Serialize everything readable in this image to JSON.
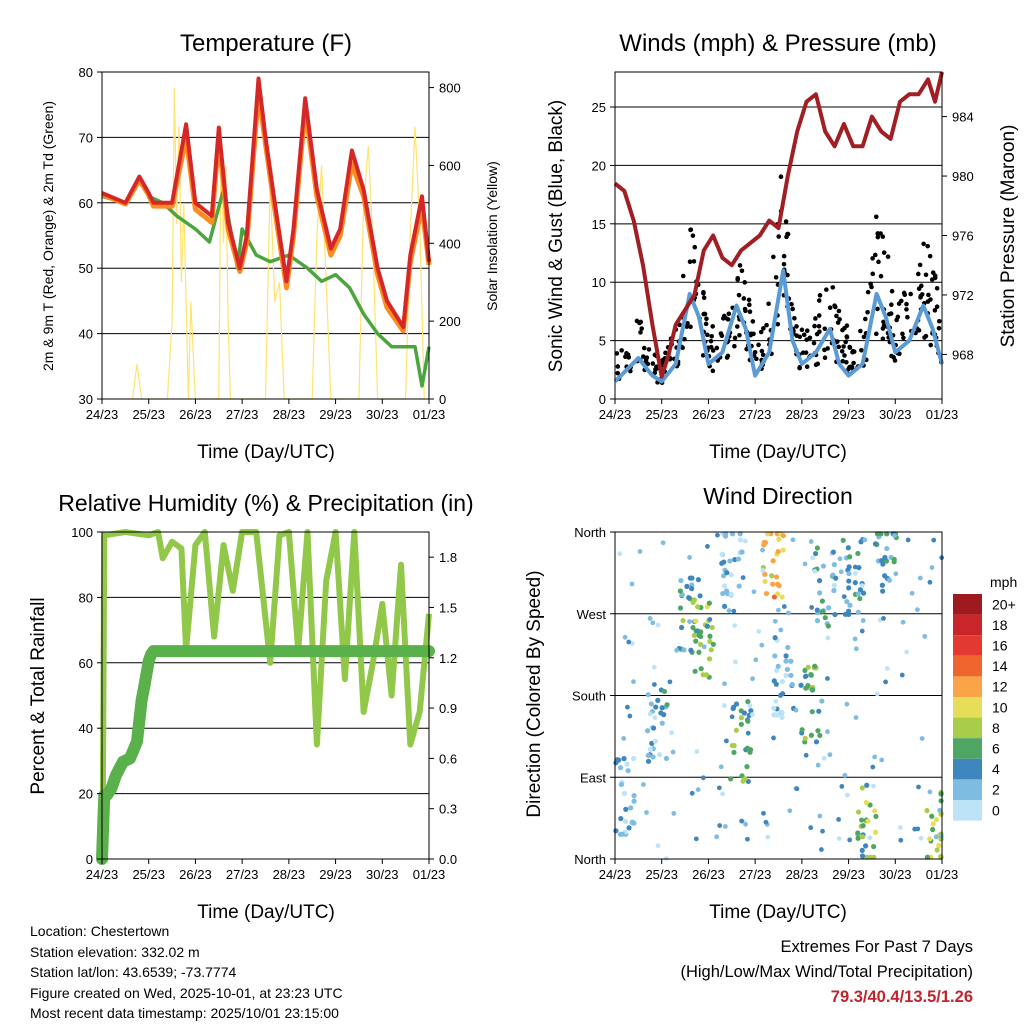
{
  "x_ticks": [
    "24/23",
    "25/23",
    "26/23",
    "27/23",
    "28/23",
    "29/23",
    "30/23",
    "01/23"
  ],
  "panels": {
    "temperature": {
      "title": "Temperature (F)",
      "xlabel": "Time (Day/UTC)",
      "ylabel_left": "2m & 9m T (Red, Orange) & 2m Td (Green)",
      "ylabel_right": "Solar Insolation (Yellow)",
      "yticks_left": [
        "30",
        "40",
        "50",
        "60",
        "70",
        "80"
      ],
      "yticks_right": [
        "0",
        "200",
        "400",
        "600",
        "800"
      ]
    },
    "winds": {
      "title": "Winds (mph) & Pressure (mb)",
      "xlabel": "Time (Day/UTC)",
      "ylabel_left": "Sonic Wind & Gust (Blue, Black)",
      "ylabel_right": "Station Pressure (Maroon)",
      "yticks_left": [
        "0",
        "5",
        "10",
        "15",
        "20",
        "25"
      ],
      "yticks_right": [
        "968",
        "972",
        "976",
        "980",
        "984"
      ]
    },
    "humidity": {
      "title": "Relative Humidity (%) & Precipitation (in)",
      "xlabel": "Time (Day/UTC)",
      "ylabel_left": "Percent & Total Rainfall",
      "yticks_left": [
        "0",
        "20",
        "40",
        "60",
        "80",
        "100"
      ],
      "yticks_right": [
        "0.0",
        "0.3",
        "0.6",
        "0.9",
        "1.2",
        "1.5",
        "1.8"
      ]
    },
    "direction": {
      "title": "Wind Direction",
      "xlabel": "Time (Day/UTC)",
      "ylabel_left": "Direction (Colored By Speed)",
      "yticks_left": [
        "North",
        "East",
        "South",
        "West",
        "North"
      ]
    }
  },
  "legend": {
    "unit": "mph",
    "labels": [
      "20+",
      "18",
      "16",
      "14",
      "12",
      "10",
      "8",
      "6",
      "4",
      "2",
      "0"
    ],
    "colors": [
      "#9e1a1e",
      "#c8262b",
      "#e23a30",
      "#f0652e",
      "#f9a446",
      "#e6de58",
      "#a7cd4b",
      "#4ea663",
      "#3f86bf",
      "#7ebce2",
      "#bde3f6"
    ]
  },
  "info": {
    "location": "Location: Chestertown",
    "elevation": "Station elevation: 332.02 m",
    "latlon": "Station lat/lon: 43.6539; -73.7774",
    "created": "Figure created on Wed, 2025-10-01, at 23:23 UTC",
    "recent": "Most recent data timestamp: 2025/10/01 23:15:00"
  },
  "extremes": {
    "title": "Extremes For Past 7 Days",
    "subtitle": "(High/Low/Max Wind/Total Precipitation)",
    "values": "79.3/40.4/13.5/1.26"
  },
  "chart_data": [
    {
      "type": "line",
      "title": "Temperature (F)",
      "x_range_days": [
        0,
        7
      ],
      "ylim": [
        30,
        80
      ],
      "y2lim": [
        0,
        840
      ],
      "series": [
        {
          "name": "2m T",
          "color": "#d62728",
          "x": [
            0,
            0.5,
            0.8,
            1,
            1.1,
            1.5,
            1.8,
            2.0,
            2.35,
            2.5,
            2.7,
            2.95,
            3.1,
            3.35,
            3.5,
            3.7,
            3.95,
            4.1,
            4.35,
            4.6,
            4.9,
            5.1,
            5.35,
            5.6,
            5.9,
            6.1,
            6.45,
            6.6,
            6.85,
            7
          ],
          "y": [
            61.5,
            60,
            64,
            61.5,
            60,
            60,
            72,
            60,
            58,
            71.5,
            57,
            50,
            55,
            79,
            70,
            60,
            48,
            56,
            76,
            62,
            53,
            56,
            68,
            62,
            50,
            45,
            41,
            52,
            61,
            51
          ]
        },
        {
          "name": "9m T",
          "color": "#ff7f0e",
          "x": [
            0,
            0.5,
            0.8,
            1,
            1.1,
            1.5,
            1.8,
            2.0,
            2.35,
            2.5,
            2.7,
            2.95,
            3.1,
            3.35,
            3.5,
            3.7,
            3.95,
            4.1,
            4.35,
            4.6,
            4.9,
            5.1,
            5.35,
            5.6,
            5.9,
            6.1,
            6.45,
            6.6,
            6.85,
            7
          ],
          "y": [
            61.3,
            59.8,
            63.5,
            61.2,
            59.5,
            59.5,
            70,
            59,
            57,
            70,
            56,
            49.5,
            54,
            77,
            69,
            59,
            47,
            55,
            74.5,
            61,
            52,
            55,
            66,
            61,
            49,
            44,
            40.4,
            51,
            59.5,
            50.5
          ]
        },
        {
          "name": "2m Td",
          "color": "#4aa63c",
          "x": [
            0,
            0.5,
            0.8,
            1.0,
            1.3,
            1.6,
            2.0,
            2.3,
            2.6,
            2.9,
            3.0,
            3.3,
            3.6,
            4.0,
            4.4,
            4.7,
            5.0,
            5.3,
            5.6,
            5.9,
            6.2,
            6.5,
            6.7,
            6.85,
            7
          ],
          "y": [
            61,
            60,
            63.5,
            61,
            60,
            58,
            56,
            54,
            62,
            50,
            56,
            52,
            51,
            52,
            50,
            48,
            49,
            47,
            43,
            40,
            38,
            38,
            38,
            32,
            38
          ]
        },
        {
          "name": "Solar Insolation",
          "color": "#ffe36e",
          "axis": "y2",
          "x": [
            0.65,
            0.75,
            0.85,
            1.4,
            1.5,
            1.55,
            1.6,
            1.65,
            1.7,
            1.75,
            1.85,
            1.9,
            2.0,
            2.1,
            2.5,
            2.55,
            2.6,
            2.65,
            2.7,
            2.75,
            2.85,
            3.0,
            3.5,
            3.6,
            3.7,
            3.8,
            3.9,
            4.0,
            4.5,
            4.6,
            4.7,
            4.8,
            4.9,
            5.0,
            5.5,
            5.6,
            5.7,
            5.8,
            5.9,
            6.0,
            6.5,
            6.6,
            6.7,
            6.8,
            6.9
          ],
          "y": [
            0,
            90,
            0,
            0,
            200,
            800,
            450,
            700,
            300,
            500,
            0,
            250,
            0,
            0,
            0,
            700,
            400,
            600,
            200,
            0,
            0,
            0,
            0,
            560,
            250,
            300,
            0,
            0,
            0,
            420,
            600,
            300,
            0,
            0,
            0,
            500,
            650,
            400,
            0,
            0,
            0,
            430,
            700,
            450,
            0
          ]
        }
      ]
    },
    {
      "type": "scatter",
      "title": "Winds (mph) & Pressure (mb)",
      "x_range_days": [
        0,
        7
      ],
      "ylim": [
        0,
        28
      ],
      "y2lim": [
        965,
        987
      ],
      "series": [
        {
          "name": "Sonic Wind",
          "color": "#5b9bd5",
          "x": [
            0,
            0.5,
            0.8,
            1,
            1.3,
            1.6,
            1.8,
            2,
            2.3,
            2.6,
            2.8,
            3,
            3.3,
            3.6,
            3.8,
            4,
            4.3,
            4.6,
            4.8,
            5,
            5.3,
            5.6,
            5.8,
            6,
            6.3,
            6.6,
            6.8,
            7
          ],
          "y": [
            1.5,
            3.5,
            2,
            1.5,
            3,
            9,
            7,
            3,
            4,
            8,
            6,
            2,
            4,
            11,
            5,
            3,
            4,
            6,
            3,
            2,
            3,
            9,
            7,
            4,
            5,
            8,
            6,
            3
          ]
        },
        {
          "name": "Gust",
          "color": "#000000",
          "x": [
            0,
            0.5,
            0.8,
            1,
            1.3,
            1.6,
            1.8,
            2,
            2.3,
            2.6,
            2.8,
            3,
            3.3,
            3.6,
            3.8,
            4,
            4.3,
            4.6,
            4.8,
            5,
            5.3,
            5.6,
            5.8,
            6,
            6.3,
            6.6,
            6.8,
            7
          ],
          "y": [
            4,
            7,
            5,
            3,
            7,
            16,
            12,
            6,
            8,
            13,
            10,
            6,
            9,
            21,
            9,
            6,
            8,
            11,
            8,
            6,
            6,
            16,
            14,
            8,
            10,
            15,
            12,
            7
          ]
        },
        {
          "name": "Station Pressure",
          "color": "#a11f24",
          "axis": "y2",
          "x": [
            0,
            0.2,
            0.4,
            0.6,
            0.8,
            1.0,
            1.15,
            1.3,
            1.5,
            1.7,
            1.9,
            2.1,
            2.3,
            2.5,
            2.7,
            2.9,
            3.1,
            3.3,
            3.5,
            3.7,
            3.9,
            4.1,
            4.3,
            4.5,
            4.7,
            4.9,
            5.1,
            5.3,
            5.5,
            5.7,
            5.9,
            6.1,
            6.3,
            6.5,
            6.7,
            6.85,
            7
          ],
          "y": [
            979.5,
            979,
            977,
            974,
            970,
            966.5,
            968,
            970,
            971,
            972,
            975,
            976,
            974.5,
            974,
            975,
            975.5,
            976,
            977,
            976.5,
            980,
            983,
            985,
            985.5,
            983,
            982,
            983.5,
            982,
            982,
            984,
            983,
            982.5,
            985,
            985.5,
            985.5,
            986.5,
            985,
            987
          ]
        }
      ]
    },
    {
      "type": "line",
      "title": "Relative Humidity (%) & Precipitation (in)",
      "x_range_days": [
        0,
        7
      ],
      "ylim": [
        0,
        100
      ],
      "y2lim": [
        0,
        1.95
      ],
      "series": [
        {
          "name": "Relative Humidity",
          "color": "#92c84a",
          "x": [
            0,
            0.02,
            0.05,
            0.5,
            1.0,
            1.2,
            1.3,
            1.5,
            1.7,
            1.8,
            2.0,
            2.2,
            2.4,
            2.6,
            2.8,
            3.0,
            3.3,
            3.6,
            3.8,
            4.0,
            4.2,
            4.4,
            4.6,
            4.8,
            5.0,
            5.2,
            5.4,
            5.6,
            5.8,
            6.0,
            6.2,
            6.4,
            6.6,
            6.8,
            7
          ],
          "y": [
            0,
            20,
            99,
            100,
            99,
            100,
            92,
            97,
            95,
            64,
            96,
            100,
            68,
            96,
            82,
            100,
            100,
            60,
            99,
            100,
            64,
            100,
            35,
            85,
            100,
            55,
            100,
            45,
            60,
            78,
            50,
            90,
            35,
            45,
            75
          ]
        },
        {
          "name": "Total Rainfall",
          "color": "#5ab04b",
          "axis": "y2",
          "x": [
            0,
            0.05,
            0.1,
            0.2,
            0.3,
            0.45,
            0.6,
            0.75,
            0.85,
            0.9,
            0.95,
            1.0,
            1.05,
            1.1,
            7
          ],
          "y": [
            0,
            0.38,
            0.38,
            0.42,
            0.5,
            0.58,
            0.6,
            0.7,
            0.95,
            1.02,
            1.1,
            1.18,
            1.22,
            1.24,
            1.24
          ]
        }
      ]
    },
    {
      "type": "scatter",
      "title": "Wind Direction",
      "x_range_days": [
        0,
        7
      ],
      "y_range_deg": [
        0,
        360
      ],
      "color_by": "speed (mph)",
      "clusters": [
        {
          "x": 0.2,
          "deg": 70,
          "speed": 2
        },
        {
          "x": 0.9,
          "deg": 150,
          "speed": 3
        },
        {
          "x": 1.6,
          "deg": 270,
          "speed": 5
        },
        {
          "x": 1.9,
          "deg": 245,
          "speed": 7
        },
        {
          "x": 2.5,
          "deg": 320,
          "speed": 2
        },
        {
          "x": 2.7,
          "deg": 130,
          "speed": 5
        },
        {
          "x": 3.4,
          "deg": 330,
          "speed": 11
        },
        {
          "x": 3.6,
          "deg": 200,
          "speed": 2
        },
        {
          "x": 4.2,
          "deg": 170,
          "speed": 6
        },
        {
          "x": 4.5,
          "deg": 300,
          "speed": 3
        },
        {
          "x": 5.1,
          "deg": 310,
          "speed": 4
        },
        {
          "x": 5.4,
          "deg": 40,
          "speed": 7
        },
        {
          "x": 5.8,
          "deg": 335,
          "speed": 4
        },
        {
          "x": 6.9,
          "deg": 30,
          "speed": 8
        }
      ]
    }
  ]
}
